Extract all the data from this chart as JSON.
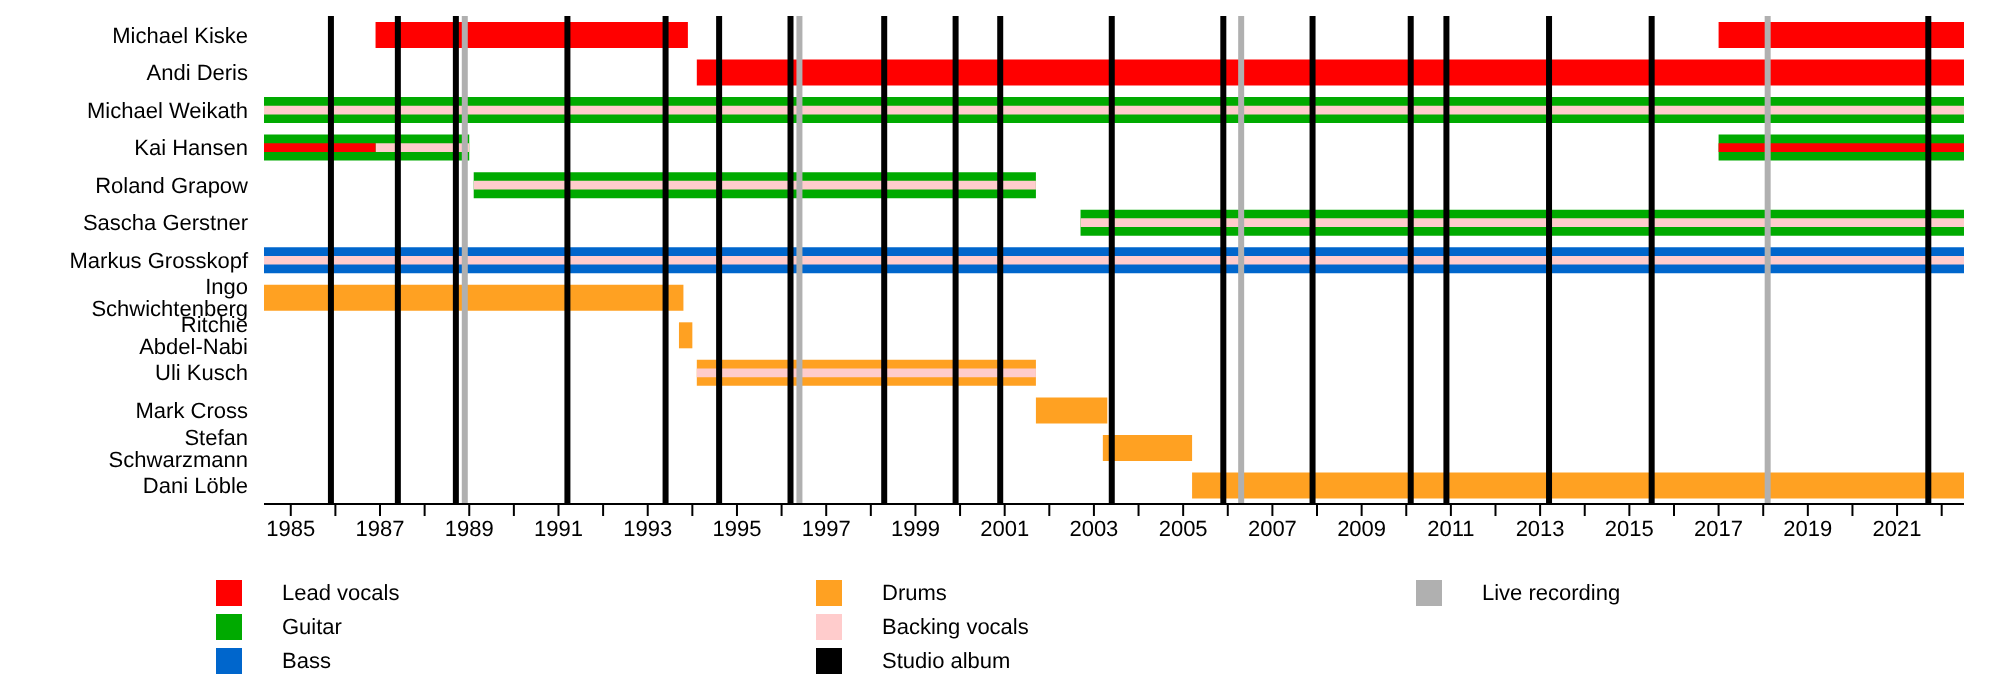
{
  "chart_data": {
    "type": "bar",
    "orientation": "horizontal",
    "categories": [
      "Michael Kiske",
      "Andi Deris",
      "Michael Weikath",
      "Kai Hansen",
      "Roland Grapow",
      "Sascha Gerstner",
      "Markus Grosskopf",
      "Ingo Schwichtenberg",
      "Ritchie Abdel-Nabi",
      "Uli Kusch",
      "Mark Cross",
      "Stefan Schwarzmann",
      "Dani Löble"
    ],
    "series": [
      {
        "name": "Lead vocals",
        "color": "#ff0000",
        "base": [
          1986.9,
          1994.1,
          null,
          null,
          null,
          null,
          null,
          null,
          null,
          null,
          null,
          null,
          null
        ],
        "values": [
          7.0,
          28.4,
          null,
          null,
          null,
          null,
          null,
          null,
          null,
          null,
          null,
          null,
          null
        ]
      },
      {
        "name": "Guitar",
        "color": "#00aa00",
        "base": [
          null,
          null,
          1984.4,
          1984.4,
          1989.1,
          2002.7,
          null,
          null,
          null,
          null,
          null,
          null,
          null
        ],
        "values": [
          null,
          null,
          38.1,
          4.6,
          12.6,
          19.8,
          null,
          null,
          null,
          null,
          null,
          null,
          null
        ]
      },
      {
        "name": "Bass",
        "color": "#0066cc",
        "base": [
          null,
          null,
          null,
          null,
          null,
          null,
          1984.4,
          null,
          null,
          null,
          null,
          null,
          null
        ],
        "values": [
          null,
          null,
          null,
          null,
          null,
          null,
          38.1,
          null,
          null,
          null,
          null,
          null,
          null
        ]
      },
      {
        "name": "Drums",
        "color": "#ffa122",
        "base": [
          null,
          null,
          null,
          null,
          null,
          null,
          null,
          1984.4,
          1993.7,
          1994.1,
          2001.7,
          2003.2,
          2005.2
        ],
        "values": [
          null,
          null,
          null,
          null,
          null,
          null,
          null,
          9.4,
          0.3,
          7.6,
          1.6,
          2.0,
          17.3
        ]
      },
      {
        "name": "Backing vocals",
        "color": "#ffcccc",
        "base": [
          null,
          null,
          1984.4,
          1986.9,
          1989.1,
          2002.7,
          1984.4,
          null,
          null,
          1994.1,
          null,
          null,
          null
        ],
        "values": [
          null,
          null,
          38.1,
          2.1,
          12.6,
          19.8,
          38.1,
          null,
          null,
          7.6,
          null,
          null,
          null
        ]
      },
      {
        "color": "#ff0000",
        "base": [
          2017.0,
          null,
          null,
          1984.4,
          null,
          null,
          null,
          null,
          null,
          null,
          null,
          null,
          null
        ],
        "values": [
          5.5,
          null,
          null,
          2.5,
          null,
          null,
          null,
          null,
          null,
          null,
          null,
          null,
          null
        ]
      },
      {
        "color": "#00aa00",
        "base": [
          null,
          null,
          null,
          2017.0,
          null,
          null,
          null,
          null,
          null,
          null,
          null,
          null,
          null
        ],
        "values": [
          null,
          null,
          null,
          5.5,
          null,
          null,
          null,
          null,
          null,
          null,
          null,
          null,
          null
        ]
      },
      {
        "color": "#ff0000",
        "base": [
          null,
          null,
          null,
          2017.0,
          null,
          null,
          null,
          null,
          null,
          null,
          null,
          null,
          null
        ],
        "values": [
          null,
          null,
          null,
          5.5,
          null,
          null,
          null,
          null,
          null,
          null,
          null,
          null,
          null
        ]
      }
    ],
    "xlim": [
      1984.4,
      2022.5
    ],
    "xticks": [
      1985,
      {
        "value": 1986,
        "label": null
      },
      1987,
      {
        "value": 1988,
        "label": null
      },
      1989,
      {
        "value": 1990,
        "label": null
      },
      1991,
      {
        "value": 1992,
        "label": null
      },
      1993,
      {
        "value": 1994,
        "label": null
      },
      1995,
      {
        "value": 1996,
        "label": null
      },
      1997,
      {
        "value": 1998,
        "label": null
      },
      1999,
      {
        "value": 2000,
        "label": null
      },
      2001,
      {
        "value": 2002,
        "label": null
      },
      2003,
      {
        "value": 2004,
        "label": null
      },
      2005,
      {
        "value": 2006,
        "label": null
      },
      2007,
      {
        "value": 2008,
        "label": null
      },
      2009,
      {
        "value": 2010,
        "label": null
      },
      2011,
      {
        "value": 2012,
        "label": null
      },
      2013,
      {
        "value": 2014,
        "label": null
      },
      2015,
      {
        "value": 2016,
        "label": null
      },
      2017,
      {
        "value": 2018,
        "label": null
      },
      2019,
      {
        "value": 2020,
        "label": null
      },
      2021,
      {
        "value": 2022,
        "label": null
      }
    ],
    "ref_lines": [
      {
        "axis": "x",
        "value": 1985.9,
        "color": "#000000",
        "label": "Studio album"
      },
      {
        "axis": "x",
        "value": 1987.4,
        "color": "#000000"
      },
      {
        "axis": "x",
        "value": 1988.7,
        "color": "#000000"
      },
      {
        "axis": "x",
        "value": 1991.2,
        "color": "#000000"
      },
      {
        "axis": "x",
        "value": 1993.4,
        "color": "#000000"
      },
      {
        "axis": "x",
        "value": 1994.6,
        "color": "#000000"
      },
      {
        "axis": "x",
        "value": 1996.2,
        "color": "#000000"
      },
      {
        "axis": "x",
        "value": 1998.3,
        "color": "#000000"
      },
      {
        "axis": "x",
        "value": 1999.9,
        "color": "#000000"
      },
      {
        "axis": "x",
        "value": 2000.9,
        "color": "#000000"
      },
      {
        "axis": "x",
        "value": 2003.4,
        "color": "#000000"
      },
      {
        "axis": "x",
        "value": 2005.9,
        "color": "#000000"
      },
      {
        "axis": "x",
        "value": 2007.9,
        "color": "#000000"
      },
      {
        "axis": "x",
        "value": 2010.1,
        "color": "#000000"
      },
      {
        "axis": "x",
        "value": 2010.9,
        "color": "#000000"
      },
      {
        "axis": "x",
        "value": 2013.2,
        "color": "#000000"
      },
      {
        "axis": "x",
        "value": 2015.5,
        "color": "#000000"
      },
      {
        "axis": "x",
        "value": 2021.7,
        "color": "#000000"
      },
      {
        "axis": "x",
        "value": 1988.9,
        "color": "#b0b0b0",
        "label": "Live recording"
      },
      {
        "axis": "x",
        "value": 1996.4,
        "color": "#b0b0b0"
      },
      {
        "axis": "x",
        "value": 2006.3,
        "color": "#b0b0b0"
      },
      {
        "axis": "x",
        "value": 2018.1,
        "color": "#b0b0b0"
      }
    ],
    "legend": "bottom"
  }
}
